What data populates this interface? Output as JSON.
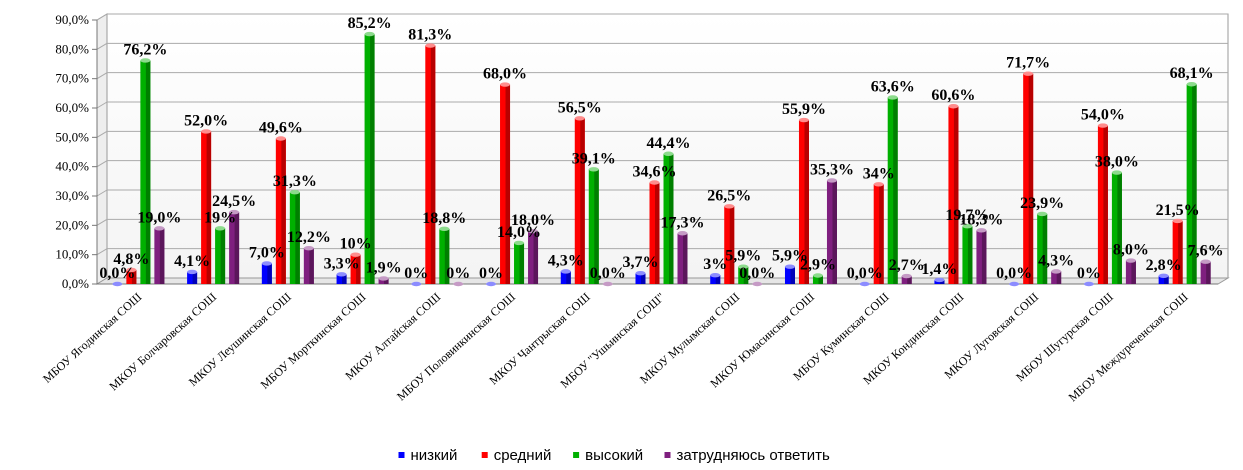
{
  "chart_data": {
    "type": "bar",
    "title": "",
    "xlabel": "",
    "ylabel": "",
    "ylim": [
      0,
      90
    ],
    "y_ticks": [
      "0,0%",
      "10,0%",
      "20,0%",
      "30,0%",
      "40,0%",
      "50,0%",
      "60,0%",
      "70,0%",
      "80,0%",
      "90,0%"
    ],
    "grid": true,
    "legend_position": "bottom",
    "categories": [
      "МБОУ Ягодинская СОШ",
      "МКОУ Болчаровская СОШ",
      "МКОУ Леушинская СОШ",
      "МБОУ Морткинская СОШ",
      "МКОУ Алтайская СОШ",
      "МБОУ Половинкинская СОШ",
      "МКОУ Чантрыская СОШ",
      "МБОУ \"Ушьинская СОШ\"",
      "МКОУ Мулымская СОШ",
      "МКОУ Юмасинская СОШ",
      "МБОУ Куминская СОШ",
      "МКОУ Кондинская СОШ",
      "МКОУ Луговская СОШ",
      "МБОУ Шугурская СОШ",
      "МБОУ Междуреченская СОШ"
    ],
    "series": [
      {
        "name": "низкий",
        "color": "#0000ff",
        "values": [
          0,
          4.1,
          7.0,
          3.3,
          0,
          0,
          4.3,
          3.7,
          3,
          5.9,
          0,
          1.4,
          0,
          0,
          2.8
        ],
        "labels": [
          "0,0%",
          "4,1%",
          "7,0%",
          "3,3%",
          "0%",
          "0%",
          "4,3%",
          "3,7%",
          "3%",
          "5,9%",
          "0,0%",
          "1,4%",
          "0,0%",
          "0%",
          "2,8%"
        ]
      },
      {
        "name": "средний",
        "color": "#ff0000",
        "values": [
          4.8,
          52.0,
          49.6,
          10,
          81.3,
          68.0,
          56.5,
          34.6,
          26.5,
          55.9,
          34,
          60.6,
          71.7,
          54.0,
          21.5
        ],
        "labels": [
          "4,8%",
          "52,0%",
          "49,6%",
          "10%",
          "81,3%",
          "68,0%",
          "56,5%",
          "34,6%",
          "26,5%",
          "55,9%",
          "34%",
          "60,6%",
          "71,7%",
          "54,0%",
          "21,5%"
        ]
      },
      {
        "name": "высокий",
        "color": "#00b000",
        "values": [
          76.2,
          19,
          31.3,
          85.2,
          18.8,
          14.0,
          39.1,
          44.4,
          5.9,
          2.9,
          63.6,
          19.7,
          23.9,
          38.0,
          68.1
        ],
        "labels": [
          "76,2%",
          "19%",
          "31,3%",
          "85,2%",
          "18,8%",
          "14,0%",
          "39,1%",
          "44,4%",
          "5,9%",
          "2,9%",
          "63,6%",
          "19,7%",
          "23,9%",
          "38,0%",
          "68,1%"
        ]
      },
      {
        "name": "затрудняюсь ответить",
        "color": "#7f1f7f",
        "values": [
          19.0,
          24.5,
          12.2,
          1.9,
          0,
          18.0,
          0.0,
          17.3,
          0.0,
          35.3,
          2.7,
          18.3,
          4.3,
          8.0,
          7.6
        ],
        "labels": [
          "19,0%",
          "24,5%",
          "12,2%",
          "1,9%",
          "0%",
          "18,0%",
          "0,0%",
          "17,3%",
          "0,0%",
          "35,3%",
          "2,7%",
          "18,3%",
          "4,3%",
          "8,0%",
          "7,6%"
        ]
      }
    ]
  }
}
